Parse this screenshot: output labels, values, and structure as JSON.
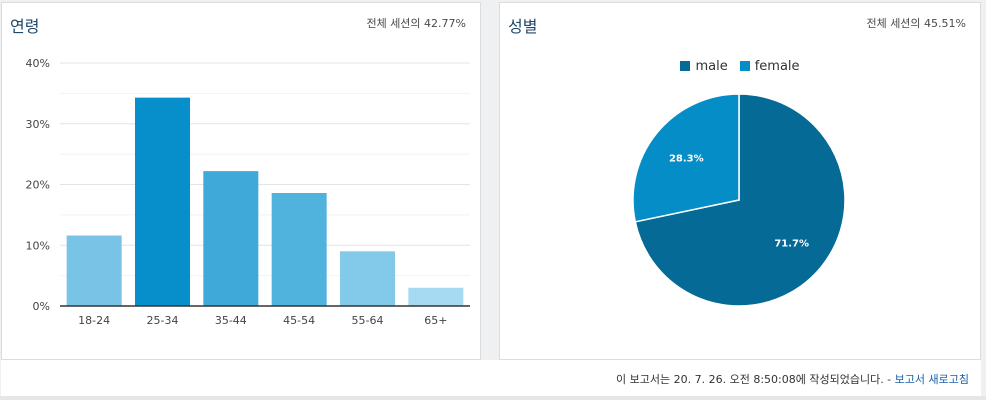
{
  "age_panel": {
    "title": "연령",
    "subtitle": "전체 세션의 42.77%"
  },
  "gender_panel": {
    "title": "성별",
    "subtitle": "전체 세션의 45.51%"
  },
  "footer": {
    "text": "이 보고서는 20. 7. 26. 오전 8:50:08에 작성되었습니다. - ",
    "link": "보고서 새로고침"
  },
  "chart_data": [
    {
      "type": "bar",
      "title": "",
      "xlabel": "",
      "ylabel": "",
      "categories": [
        "18-24",
        "25-34",
        "35-44",
        "45-54",
        "55-64",
        "65+"
      ],
      "values": [
        11.6,
        34.3,
        22.2,
        18.6,
        9.0,
        3.0
      ],
      "colors": [
        "#79c4e6",
        "#068fca",
        "#3fa9d9",
        "#50b3de",
        "#82c9ea",
        "#a6daf2"
      ],
      "ylim": [
        0,
        40
      ],
      "yticks": [
        0,
        10,
        20,
        30,
        40
      ],
      "ytick_labels": [
        "0%",
        "10%",
        "20%",
        "30%",
        "40%"
      ],
      "grid": true
    },
    {
      "type": "pie",
      "labels": [
        "male",
        "female"
      ],
      "values": [
        71.7,
        28.3
      ],
      "value_labels": [
        "71.7%",
        "28.3%"
      ],
      "colors": [
        "#066a96",
        "#058dc7"
      ],
      "legend_position": "top"
    }
  ]
}
